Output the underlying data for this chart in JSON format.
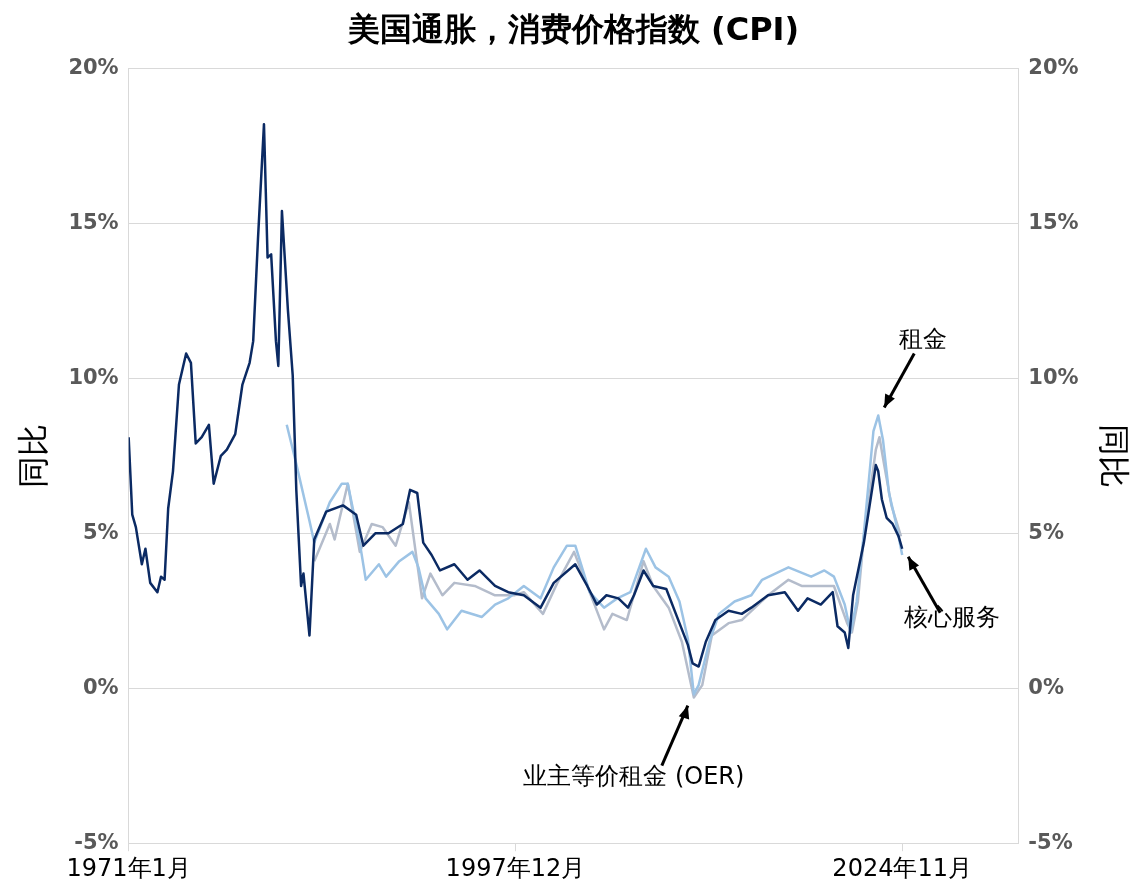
{
  "chart_data": {
    "type": "line",
    "title": "美国通胀，消费价格指数 (CPI)",
    "ylabel": "同比",
    "y2label": "同比",
    "xlim": [
      "1971-01",
      "2032-12"
    ],
    "xticks": [
      {
        "value": "1971-01",
        "label": "1971年1月"
      },
      {
        "value": "1997-12",
        "label": "1997年12月"
      },
      {
        "value": "2024-11",
        "label": "2024年11月"
      }
    ],
    "ylim": [
      -5,
      20
    ],
    "yticks": [
      {
        "value": -5,
        "label": "-5%"
      },
      {
        "value": 0,
        "label": "0%"
      },
      {
        "value": 5,
        "label": "5%"
      },
      {
        "value": 10,
        "label": "10%"
      },
      {
        "value": 15,
        "label": "15%"
      },
      {
        "value": 20,
        "label": "20%"
      }
    ],
    "y2lim": [
      -5,
      20
    ],
    "y2ticks": [
      {
        "value": -5,
        "label": "-5%"
      },
      {
        "value": 0,
        "label": "0%"
      },
      {
        "value": 5,
        "label": "5%"
      },
      {
        "value": 10,
        "label": "10%"
      },
      {
        "value": 15,
        "label": "15%"
      },
      {
        "value": 20,
        "label": "20%"
      }
    ],
    "grid": "y",
    "legend": false,
    "marker": "none",
    "line_style": "solid",
    "series": [
      {
        "name": "核心服务",
        "color": "#0b2a63",
        "x": [
          "1971-01",
          "1971-04",
          "1971-07",
          "1971-12",
          "1972-03",
          "1972-07",
          "1973-01",
          "1973-04",
          "1973-07",
          "1973-10",
          "1974-02",
          "1974-07",
          "1974-10",
          "1975-01",
          "1975-05",
          "1975-09",
          "1976-02",
          "1976-08",
          "1976-12",
          "1977-06",
          "1977-11",
          "1978-06",
          "1978-12",
          "1979-06",
          "1979-09",
          "1980-01",
          "1980-06",
          "1980-09",
          "1980-12",
          "1981-04",
          "1981-06",
          "1981-09",
          "1982-02",
          "1982-06",
          "1982-09",
          "1983-01",
          "1983-03",
          "1983-08",
          "1983-12",
          "1984-10",
          "1985-12",
          "1986-11",
          "1987-05",
          "1988-03",
          "1989-02",
          "1990-02",
          "1990-08",
          "1991-02",
          "1991-07",
          "1992-02",
          "1992-09",
          "1993-09",
          "1994-08",
          "1995-06",
          "1996-07",
          "1997-06",
          "1998-07",
          "1999-09",
          "2000-08",
          "2002-02",
          "2002-12",
          "2003-08",
          "2004-04",
          "2005-02",
          "2005-10",
          "2006-03",
          "2006-11",
          "2007-07",
          "2008-06",
          "2009-02",
          "2009-12",
          "2010-04",
          "2010-09",
          "2011-03",
          "2011-11",
          "2012-10",
          "2013-09",
          "2014-05",
          "2015-07",
          "2016-09",
          "2017-08",
          "2018-04",
          "2019-03",
          "2020-01",
          "2020-05",
          "2020-11",
          "2021-02",
          "2021-06",
          "2022-03",
          "2023-01",
          "2023-03",
          "2023-06",
          "2023-10",
          "2024-03",
          "2024-08",
          "2024-11"
        ],
        "values": [
          8.1,
          5.6,
          5.2,
          4.0,
          4.5,
          3.4,
          3.1,
          3.6,
          3.5,
          5.8,
          7.0,
          9.8,
          10.3,
          10.8,
          10.5,
          7.9,
          8.1,
          8.5,
          6.6,
          7.5,
          7.7,
          8.2,
          9.8,
          10.5,
          11.2,
          14.5,
          18.2,
          13.9,
          14.0,
          11.2,
          10.4,
          15.4,
          12.2,
          10.1,
          6.4,
          3.3,
          3.7,
          1.7,
          4.8,
          5.7,
          5.9,
          5.6,
          4.6,
          5.0,
          5.0,
          5.3,
          6.4,
          6.3,
          4.7,
          4.3,
          3.8,
          4.0,
          3.5,
          3.8,
          3.3,
          3.1,
          3.0,
          2.6,
          3.4,
          4.0,
          3.3,
          2.7,
          3.0,
          2.9,
          2.6,
          3.0,
          3.8,
          3.3,
          3.2,
          2.4,
          1.4,
          0.8,
          0.7,
          1.5,
          2.2,
          2.5,
          2.4,
          2.6,
          3.0,
          3.1,
          2.5,
          2.9,
          2.7,
          3.1,
          2.0,
          1.8,
          1.3,
          3.0,
          4.7,
          7.2,
          7.0,
          6.1,
          5.5,
          5.3,
          4.9,
          4.5
        ]
      },
      {
        "name": "租金",
        "color": "#9cc3e5",
        "x": [
          "1982-01",
          "1982-08",
          "1983-08",
          "1983-12",
          "1985-01",
          "1985-11",
          "1986-04",
          "1987-02",
          "1987-07",
          "1988-06",
          "1988-12",
          "1989-11",
          "1990-10",
          "1991-03",
          "1991-09",
          "1992-08",
          "1993-03",
          "1994-03",
          "1995-08",
          "1996-07",
          "1997-06",
          "1998-07",
          "1999-09",
          "2000-08",
          "2001-07",
          "2002-02",
          "2003-02",
          "2004-02",
          "2005-01",
          "2005-12",
          "2007-01",
          "2007-09",
          "2008-08",
          "2009-05",
          "2009-12",
          "2010-05",
          "2010-09",
          "2011-06",
          "2012-02",
          "2013-03",
          "2014-05",
          "2015-02",
          "2016-12",
          "2018-07",
          "2019-06",
          "2020-02",
          "2020-11",
          "2021-04",
          "2021-09",
          "2022-03",
          "2022-11",
          "2023-03",
          "2023-07",
          "2023-12",
          "2024-06",
          "2024-11"
        ],
        "values": [
          8.5,
          7.4,
          5.4,
          4.7,
          6.0,
          6.6,
          6.6,
          4.7,
          3.5,
          4.0,
          3.6,
          4.1,
          4.4,
          3.9,
          2.9,
          2.4,
          1.9,
          2.5,
          2.3,
          2.7,
          2.9,
          3.3,
          2.9,
          3.9,
          4.6,
          4.6,
          3.1,
          2.6,
          2.9,
          3.1,
          4.5,
          3.9,
          3.6,
          2.8,
          1.6,
          -0.2,
          0.1,
          1.5,
          2.4,
          2.8,
          3.0,
          3.5,
          3.9,
          3.6,
          3.8,
          3.6,
          2.7,
          1.8,
          2.8,
          5.0,
          8.3,
          8.8,
          8.0,
          6.3,
          5.3,
          4.3
        ]
      },
      {
        "name": "业主等价租金 (OER)",
        "color": "#b4bccb",
        "x": [
          "1983-12",
          "1985-01",
          "1985-05",
          "1986-04",
          "1987-02",
          "1987-12",
          "1988-09",
          "1989-08",
          "1990-07",
          "1991-06",
          "1992-01",
          "1992-11",
          "1993-09",
          "1995-02",
          "1996-07",
          "1997-11",
          "1998-07",
          "1999-11",
          "2000-11",
          "2002-01",
          "2002-11",
          "2004-02",
          "2004-09",
          "2005-09",
          "2006-11",
          "2007-07",
          "2008-08",
          "2009-07",
          "2010-05",
          "2010-12",
          "2011-08",
          "2012-10",
          "2013-09",
          "2015-07",
          "2016-12",
          "2017-11",
          "2019-03",
          "2020-02",
          "2021-01",
          "2021-05",
          "2021-10",
          "2022-03",
          "2023-01",
          "2023-04",
          "2023-08",
          "2024-02",
          "2024-10"
        ],
        "values": [
          4.1,
          5.3,
          4.8,
          6.6,
          4.4,
          5.3,
          5.2,
          4.6,
          6.0,
          2.9,
          3.7,
          3.0,
          3.4,
          3.3,
          3.0,
          3.0,
          3.1,
          2.4,
          3.4,
          4.4,
          3.4,
          1.9,
          2.4,
          2.2,
          4.1,
          3.3,
          2.6,
          1.5,
          -0.3,
          0.1,
          1.7,
          2.1,
          2.2,
          3.0,
          3.5,
          3.3,
          3.3,
          3.3,
          2.1,
          1.8,
          2.8,
          4.9,
          7.7,
          8.1,
          7.2,
          5.9,
          4.9
        ]
      }
    ]
  }
}
